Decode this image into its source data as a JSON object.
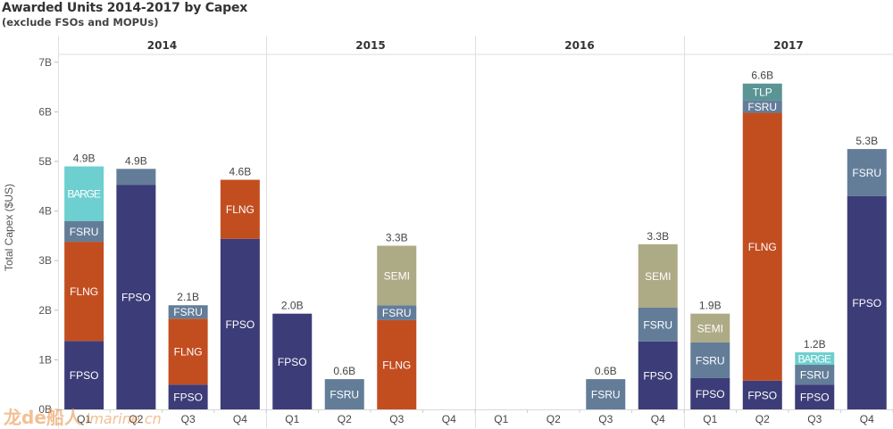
{
  "title": "Awarded Units 2014-2017 by Capex",
  "subtitle": "(exclude FSOs and MOPUs)",
  "watermark": {
    "brand": "龙de船人",
    "site": "imarine.cn"
  },
  "chart_data": {
    "type": "bar",
    "stacked": true,
    "title": "Awarded Units 2014-2017 by Capex",
    "subtitle": "(exclude FSOs and MOPUs)",
    "xlabel": "",
    "ylabel": "Total Capex ($US)",
    "ylim": [
      0,
      7.3
    ],
    "yticks": [
      0,
      1,
      2,
      3,
      4,
      5,
      6,
      7
    ],
    "ytick_labels": [
      "0B",
      "1B",
      "2B",
      "3B",
      "4B",
      "5B",
      "6B",
      "7B"
    ],
    "grid": false,
    "units": "billion USD",
    "colors": {
      "FPSO": "#3c3c78",
      "FLNG": "#c24e20",
      "FSRU": "#637d99",
      "BARGE": "#6dcfcf",
      "SEMI": "#adaa86",
      "TLP": "#5a9494"
    },
    "stack_order": [
      "FPSO",
      "FLNG",
      "FSRU",
      "BARGE",
      "SEMI",
      "TLP"
    ],
    "years": [
      {
        "year": "2014",
        "quarters": [
          {
            "q": "Q1",
            "total_label": "4.9B",
            "segments": [
              {
                "type": "FPSO",
                "value": 1.38,
                "label": "FPSO"
              },
              {
                "type": "FLNG",
                "value": 2.0,
                "label": "FLNG"
              },
              {
                "type": "FSRU",
                "value": 0.42,
                "label": "FSRU"
              },
              {
                "type": "BARGE",
                "value": 1.1,
                "label": "BARGE"
              }
            ]
          },
          {
            "q": "Q2",
            "total_label": "4.9B",
            "segments": [
              {
                "type": "FPSO",
                "value": 4.53,
                "label": "FPSO"
              },
              {
                "type": "FSRU",
                "value": 0.32,
                "label": ""
              }
            ]
          },
          {
            "q": "Q3",
            "total_label": "2.1B",
            "segments": [
              {
                "type": "FPSO",
                "value": 0.5,
                "label": "FPSO"
              },
              {
                "type": "FLNG",
                "value": 1.33,
                "label": "FLNG"
              },
              {
                "type": "FSRU",
                "value": 0.27,
                "label": "FSRU"
              }
            ]
          },
          {
            "q": "Q4",
            "total_label": "4.6B",
            "segments": [
              {
                "type": "FPSO",
                "value": 3.44,
                "label": "FPSO"
              },
              {
                "type": "FLNG",
                "value": 1.19,
                "label": "FLNG"
              }
            ]
          }
        ]
      },
      {
        "year": "2015",
        "quarters": [
          {
            "q": "Q1",
            "total_label": "2.0B",
            "segments": [
              {
                "type": "FPSO",
                "value": 1.93,
                "label": "FPSO"
              }
            ]
          },
          {
            "q": "Q2",
            "total_label": "0.6B",
            "segments": [
              {
                "type": "FSRU",
                "value": 0.61,
                "label": "FSRU"
              }
            ]
          },
          {
            "q": "Q3",
            "total_label": "3.3B",
            "segments": [
              {
                "type": "FLNG",
                "value": 1.8,
                "label": "FLNG"
              },
              {
                "type": "FSRU",
                "value": 0.3,
                "label": "FSRU"
              },
              {
                "type": "SEMI",
                "value": 1.2,
                "label": "SEMI"
              }
            ]
          },
          {
            "q": "Q4",
            "total_label": "",
            "segments": []
          }
        ]
      },
      {
        "year": "2016",
        "quarters": [
          {
            "q": "Q1",
            "total_label": "",
            "segments": []
          },
          {
            "q": "Q2",
            "total_label": "",
            "segments": []
          },
          {
            "q": "Q3",
            "total_label": "0.6B",
            "segments": [
              {
                "type": "FSRU",
                "value": 0.61,
                "label": "FSRU"
              }
            ]
          },
          {
            "q": "Q4",
            "total_label": "3.3B",
            "segments": [
              {
                "type": "FPSO",
                "value": 1.37,
                "label": "FPSO"
              },
              {
                "type": "FSRU",
                "value": 0.68,
                "label": "FSRU"
              },
              {
                "type": "SEMI",
                "value": 1.28,
                "label": "SEMI"
              }
            ]
          }
        ]
      },
      {
        "year": "2017",
        "quarters": [
          {
            "q": "Q1",
            "total_label": "1.9B",
            "segments": [
              {
                "type": "FPSO",
                "value": 0.63,
                "label": "FPSO"
              },
              {
                "type": "FSRU",
                "value": 0.72,
                "label": "FSRU"
              },
              {
                "type": "SEMI",
                "value": 0.58,
                "label": "SEMI"
              }
            ]
          },
          {
            "q": "Q2",
            "total_label": "6.6B",
            "segments": [
              {
                "type": "FPSO",
                "value": 0.58,
                "label": "FPSO"
              },
              {
                "type": "FLNG",
                "value": 5.4,
                "label": "FLNG"
              },
              {
                "type": "FSRU",
                "value": 0.25,
                "label": "FSRU"
              },
              {
                "type": "TLP",
                "value": 0.34,
                "label": "TLP"
              }
            ]
          },
          {
            "q": "Q3",
            "total_label": "1.2B",
            "segments": [
              {
                "type": "FPSO",
                "value": 0.5,
                "label": "FPSO"
              },
              {
                "type": "FSRU",
                "value": 0.4,
                "label": "FSRU"
              },
              {
                "type": "BARGE",
                "value": 0.25,
                "label": "BARGE"
              }
            ]
          },
          {
            "q": "Q4",
            "total_label": "5.3B",
            "segments": [
              {
                "type": "FPSO",
                "value": 4.3,
                "label": "FPSO"
              },
              {
                "type": "FSRU",
                "value": 0.95,
                "label": "FSRU"
              }
            ]
          }
        ]
      }
    ]
  }
}
